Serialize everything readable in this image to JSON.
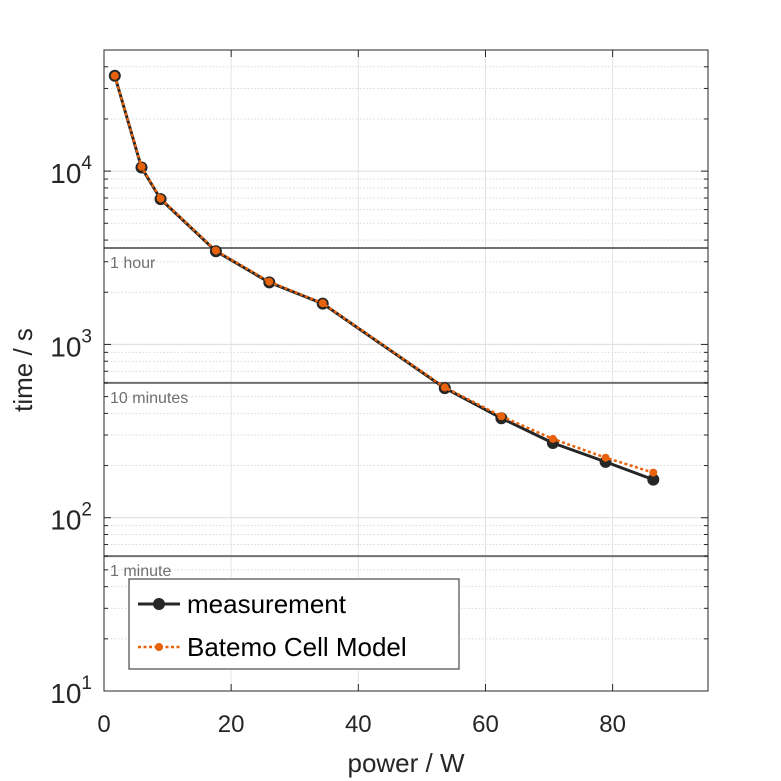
{
  "chart_data": {
    "type": "line",
    "xlabel": "power / W",
    "ylabel": "time / s",
    "x_scale": "linear",
    "y_scale": "log",
    "xlim": [
      0,
      95
    ],
    "ylim": [
      10,
      50000
    ],
    "x_ticks": [
      "0",
      "20",
      "40",
      "60",
      "80"
    ],
    "x_tick_values": [
      0,
      20,
      40,
      60,
      80
    ],
    "y_ticks": [
      {
        "value": 10,
        "base": "10",
        "exp": "1"
      },
      {
        "value": 100,
        "base": "10",
        "exp": "2"
      },
      {
        "value": 1000,
        "base": "10",
        "exp": "3"
      },
      {
        "value": 10000,
        "base": "10",
        "exp": "4"
      }
    ],
    "grid": true,
    "reference_lines": [
      {
        "label": "1 hour",
        "y": 3600
      },
      {
        "label": "10 minutes",
        "y": 600
      },
      {
        "label": "1 minute",
        "y": 60
      }
    ],
    "legend_position": "bottom-left",
    "series": [
      {
        "name": "measurement",
        "color": "#262626",
        "style": "solid",
        "x": [
          1.7,
          5.9,
          8.9,
          17.6,
          26.0,
          34.4,
          53.6,
          62.5,
          70.6,
          78.9,
          86.4
        ],
        "y": [
          35500,
          10500,
          6900,
          3450,
          2280,
          1720,
          560,
          375,
          270,
          210,
          166
        ]
      },
      {
        "name": "Batemo Cell Model",
        "color": "#e8620c",
        "style": "dotted",
        "x": [
          1.7,
          5.9,
          8.9,
          17.6,
          26.0,
          34.4,
          53.6,
          62.5,
          70.6,
          78.9,
          86.4
        ],
        "y": [
          35500,
          10600,
          6950,
          3480,
          2300,
          1730,
          565,
          385,
          285,
          222,
          182
        ]
      }
    ]
  }
}
